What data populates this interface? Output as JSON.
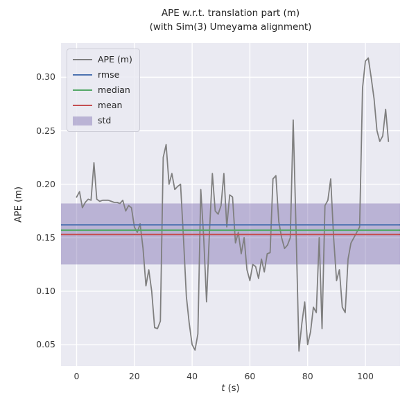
{
  "figure": {
    "title_line1": "APE w.r.t. translation part (m)",
    "title_line2": "(with Sim(3) Umeyama alignment)",
    "ylabel": "APE (m)",
    "xlabel_var": "t",
    "xlabel_unit": " (s)"
  },
  "chart_data": {
    "type": "line",
    "title": "APE w.r.t. translation part (m) (with Sim(3) Umeyama alignment)",
    "xlabel": "t (s)",
    "ylabel": "APE (m)",
    "xlim": [
      -5.4,
      112.0
    ],
    "ylim": [
      0.03,
      0.332
    ],
    "grid": true,
    "legend_position": "upper left",
    "xticks": {
      "values": [
        0,
        20,
        40,
        60,
        80,
        100
      ],
      "labels": [
        "0",
        "20",
        "40",
        "60",
        "80",
        "100"
      ]
    },
    "yticks": {
      "values": [
        0.05,
        0.1,
        0.15,
        0.2,
        0.25,
        0.3
      ],
      "labels": [
        "0.05",
        "0.10",
        "0.15",
        "0.20",
        "0.25",
        "0.30"
      ]
    },
    "stats": {
      "rmse": 0.162,
      "median": 0.157,
      "mean": 0.153,
      "std": 0.0285
    },
    "std_band": [
      0.125,
      0.182
    ],
    "colors": {
      "ape": "#7f7f7f",
      "rmse": "#4c72b0",
      "median": "#55a868",
      "mean": "#c44e52",
      "std": "#8172b2",
      "std_alpha": 0.45,
      "plot_bg": "#eaeaf2",
      "grid": "#ffffff"
    },
    "legend": [
      {
        "label": "APE (m)",
        "key": "ape",
        "type": "line"
      },
      {
        "label": "rmse",
        "key": "rmse",
        "type": "line"
      },
      {
        "label": "median",
        "key": "median",
        "type": "line"
      },
      {
        "label": "mean",
        "key": "mean",
        "type": "line"
      },
      {
        "label": "std",
        "key": "std",
        "type": "patch"
      }
    ],
    "series": [
      {
        "name": "APE (m)",
        "x": [
          0,
          1,
          2,
          3,
          4,
          5,
          6,
          7,
          8,
          9,
          10,
          11,
          12,
          13,
          14,
          15,
          16,
          17,
          18,
          19,
          20,
          21,
          22,
          23,
          24,
          25,
          26,
          27,
          28,
          29,
          30,
          31,
          32,
          33,
          34,
          35,
          36,
          37,
          38,
          39,
          40,
          41,
          42,
          43,
          44,
          45,
          46,
          47,
          48,
          49,
          50,
          51,
          52,
          53,
          54,
          55,
          56,
          57,
          58,
          59,
          60,
          61,
          62,
          63,
          64,
          65,
          66,
          67,
          68,
          69,
          70,
          71,
          72,
          73,
          74,
          75,
          76,
          77,
          78,
          79,
          80,
          81,
          82,
          83,
          84,
          85,
          86,
          87,
          88,
          89,
          90,
          91,
          92,
          93,
          94,
          95,
          96,
          97,
          98,
          99,
          100,
          101,
          102,
          103,
          104,
          105,
          106,
          107,
          108
        ],
        "y": [
          0.188,
          0.193,
          0.178,
          0.183,
          0.186,
          0.185,
          0.22,
          0.186,
          0.184,
          0.185,
          0.185,
          0.185,
          0.184,
          0.183,
          0.183,
          0.182,
          0.185,
          0.175,
          0.18,
          0.178,
          0.16,
          0.155,
          0.163,
          0.14,
          0.105,
          0.12,
          0.1,
          0.066,
          0.065,
          0.072,
          0.225,
          0.237,
          0.2,
          0.21,
          0.195,
          0.198,
          0.2,
          0.15,
          0.095,
          0.07,
          0.05,
          0.045,
          0.06,
          0.195,
          0.15,
          0.09,
          0.155,
          0.21,
          0.175,
          0.172,
          0.18,
          0.21,
          0.16,
          0.19,
          0.188,
          0.145,
          0.155,
          0.135,
          0.15,
          0.12,
          0.11,
          0.125,
          0.123,
          0.112,
          0.13,
          0.118,
          0.135,
          0.136,
          0.205,
          0.208,
          0.165,
          0.15,
          0.14,
          0.143,
          0.15,
          0.26,
          0.155,
          0.044,
          0.07,
          0.09,
          0.05,
          0.062,
          0.085,
          0.08,
          0.15,
          0.065,
          0.18,
          0.185,
          0.205,
          0.15,
          0.11,
          0.12,
          0.085,
          0.08,
          0.13,
          0.145,
          0.15,
          0.155,
          0.16,
          0.29,
          0.315,
          0.318,
          0.3,
          0.28,
          0.25,
          0.24,
          0.245,
          0.27,
          0.24
        ]
      }
    ]
  }
}
